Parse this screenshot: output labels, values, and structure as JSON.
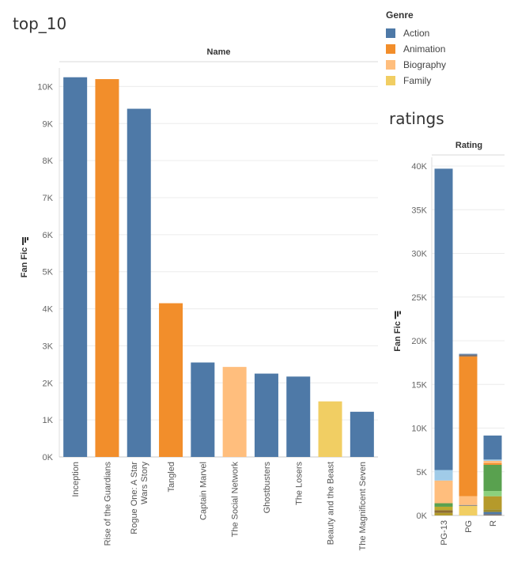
{
  "sheets": {
    "left_title": "top_10",
    "right_title": "ratings"
  },
  "legend": {
    "title": "Genre",
    "items": [
      {
        "label": "Action",
        "color": "#4e79a7"
      },
      {
        "label": "Animation",
        "color": "#f28e2b"
      },
      {
        "label": "Biography",
        "color": "#ffbe7d"
      },
      {
        "label": "Family",
        "color": "#f1ce63"
      }
    ]
  },
  "chart_data": [
    {
      "type": "bar",
      "title": "top_10",
      "column_header": "Name",
      "ylabel": "Fan Fic",
      "ylim": [
        0,
        10500
      ],
      "yticks": [
        0,
        1000,
        2000,
        3000,
        4000,
        5000,
        6000,
        7000,
        8000,
        9000,
        10000
      ],
      "ytick_labels": [
        "0K",
        "1K",
        "2K",
        "3K",
        "4K",
        "5K",
        "6K",
        "7K",
        "8K",
        "9K",
        "10K"
      ],
      "grid": true,
      "categories": [
        "Inception",
        "Rise of the Guardians",
        "Rogue One: A Star Wars Story",
        "Tangled",
        "Captain Marvel",
        "The Social Network",
        "Ghostbusters",
        "The Losers",
        "Beauty and the Beast",
        "The Magnificent Seven"
      ],
      "category_lines": [
        [
          "Inception"
        ],
        [
          "Rise of the Guardians"
        ],
        [
          "Rogue One: A Star",
          "Wars Story"
        ],
        [
          "Tangled"
        ],
        [
          "Captain Marvel"
        ],
        [
          "The Social Network"
        ],
        [
          "Ghostbusters"
        ],
        [
          "The Losers"
        ],
        [
          "Beauty and the Beast"
        ],
        [
          "The Magnificent Seven"
        ]
      ],
      "values": [
        10250,
        10200,
        9400,
        4150,
        2550,
        2430,
        2250,
        2170,
        1500,
        1220
      ],
      "genre": [
        "Action",
        "Animation",
        "Action",
        "Animation",
        "Action",
        "Biography",
        "Action",
        "Action",
        "Family",
        "Action"
      ]
    },
    {
      "type": "bar",
      "stacked": true,
      "title": "ratings",
      "column_header": "Rating",
      "ylabel": "Fan Fic",
      "ylim": [
        0,
        41000
      ],
      "yticks": [
        0,
        5000,
        10000,
        15000,
        20000,
        25000,
        30000,
        35000,
        40000
      ],
      "ytick_labels": [
        "0K",
        "5K",
        "10K",
        "15K",
        "20K",
        "25K",
        "30K",
        "35K",
        "40K"
      ],
      "grid": true,
      "categories": [
        "PG-13",
        "PG",
        "R"
      ],
      "stacks": [
        [
          {
            "value": 300,
            "color": "#b29a2b"
          },
          {
            "value": 300,
            "color": "#8c6d31"
          },
          {
            "value": 400,
            "color": "#bcaa2e"
          },
          {
            "value": 400,
            "color": "#59a14f"
          },
          {
            "value": 2600,
            "color": "#ffbe7d"
          },
          {
            "value": 1200,
            "color": "#a0cbe8"
          },
          {
            "value": 34500,
            "color": "#4e79a7"
          }
        ],
        [
          {
            "value": 1100,
            "color": "#f1ce63"
          },
          {
            "value": 100,
            "color": "#7f7f7f"
          },
          {
            "value": 1000,
            "color": "#ffbe7d"
          },
          {
            "value": 16000,
            "color": "#f28e2b"
          },
          {
            "value": 200,
            "color": "#79706e"
          },
          {
            "value": 100,
            "color": "#4e79a7"
          }
        ],
        [
          {
            "value": 150,
            "color": "#79706e"
          },
          {
            "value": 250,
            "color": "#4e79a7"
          },
          {
            "value": 300,
            "color": "#9c8b2a"
          },
          {
            "value": 1500,
            "color": "#b59a2b"
          },
          {
            "value": 600,
            "color": "#8cd17d"
          },
          {
            "value": 3000,
            "color": "#59a14f"
          },
          {
            "value": 200,
            "color": "#f28e2b"
          },
          {
            "value": 250,
            "color": "#ffbe7d"
          },
          {
            "value": 150,
            "color": "#a0cbe8"
          },
          {
            "value": 2750,
            "color": "#4e79a7"
          }
        ]
      ]
    }
  ]
}
